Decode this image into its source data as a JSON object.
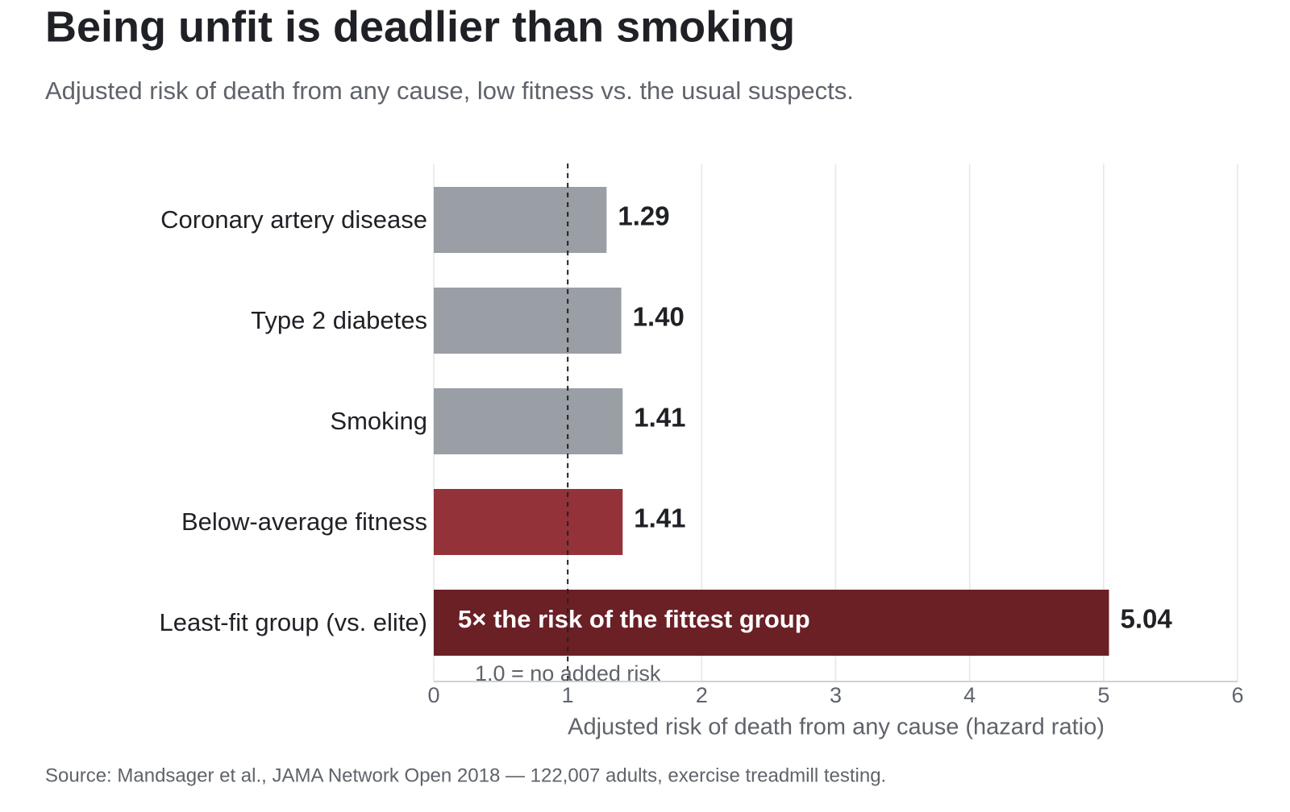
{
  "chart_data": {
    "type": "barh",
    "title": "Being unfit is deadlier than smoking",
    "subtitle": "Adjusted risk of death from any cause, low fitness vs. the usual suspects.",
    "categories": [
      "Coronary artery disease",
      "Type 2 diabetes",
      "Smoking",
      "Below-average fitness",
      "Least-fit group (vs. elite)"
    ],
    "values": [
      1.29,
      1.4,
      1.41,
      1.41,
      5.04
    ],
    "value_labels": [
      "1.29",
      "1.40",
      "1.41",
      "1.41",
      "5.04"
    ],
    "colors": [
      "#9a9ea5",
      "#9a9ea5",
      "#9a9ea5",
      "#933239",
      "#6b2026"
    ],
    "xlim": [
      0,
      6
    ],
    "xticks": [
      0,
      1,
      2,
      3,
      4,
      5,
      6
    ],
    "xlabel": "Adjusted risk of death from any cause (hazard ratio)",
    "grid": true,
    "reference_line": {
      "value": 1,
      "label": "1.0 = no added risk"
    },
    "bar_annotation": "5× the risk of the fittest group",
    "source": "Source: Mandsager et al., JAMA Network Open 2018 — 122,007 adults, exercise treadmill testing."
  }
}
